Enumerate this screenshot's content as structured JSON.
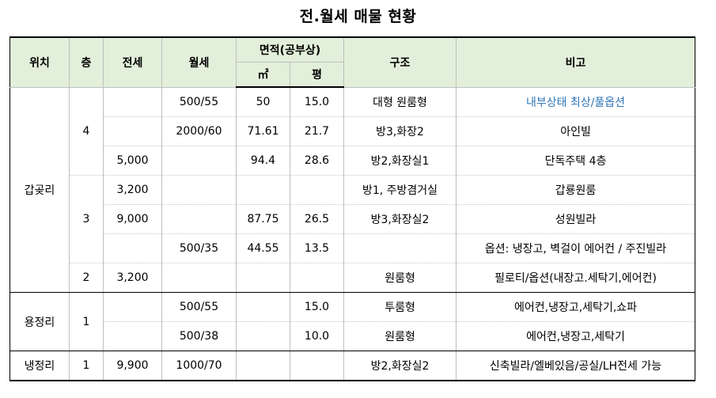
{
  "title": "전.월세 매물 현황",
  "headers": {
    "location": "위치",
    "floor": "층",
    "jeonse": "전세",
    "wolse": "월세",
    "area": "면적(공부상)",
    "area_m2": "㎡",
    "area_pyeong": "평",
    "structure": "구조",
    "note": "비고"
  },
  "groups": [
    {
      "location": "갑곶리",
      "floors": [
        "4",
        "3",
        "2"
      ]
    },
    {
      "location": "용정리",
      "floors": [
        "1"
      ]
    },
    {
      "location": "냉정리",
      "floors": [
        "1"
      ]
    }
  ],
  "rows": [
    {
      "jeonse": "",
      "wolse": "500/55",
      "m2": "50",
      "pyeong": "15.0",
      "structure": "대형 원룸형",
      "note": "내부상태 최상/풀옵션"
    },
    {
      "jeonse": "",
      "wolse": "2000/60",
      "m2": "71.61",
      "pyeong": "21.7",
      "structure": "방3,화장2",
      "note": "아인빌"
    },
    {
      "jeonse": "5,000",
      "wolse": "",
      "m2": "94.4",
      "pyeong": "28.6",
      "structure": "방2,화장실1",
      "note": "단독주택 4층"
    },
    {
      "jeonse": "3,200",
      "wolse": "",
      "m2": "",
      "pyeong": "",
      "structure": "방1, 주방겸거실",
      "note": "갑룡원룸"
    },
    {
      "jeonse": "9,000",
      "wolse": "",
      "m2": "87.75",
      "pyeong": "26.5",
      "structure": "방3,화장실2",
      "note": "성원빌라"
    },
    {
      "jeonse": "",
      "wolse": "500/35",
      "m2": "44.55",
      "pyeong": "13.5",
      "structure": "",
      "note": "옵션: 냉장고, 벽걸이 에어컨 / 주진빌라"
    },
    {
      "jeonse": "3,200",
      "wolse": "",
      "m2": "",
      "pyeong": "",
      "structure": "원룸형",
      "note": "필로티/옵션(내장고.세탁기,에어컨)"
    },
    {
      "jeonse": "",
      "wolse": "500/55",
      "m2": "",
      "pyeong": "15.0",
      "structure": "투룸형",
      "note": "에어컨,냉장고,세탁기,쇼파"
    },
    {
      "jeonse": "",
      "wolse": "500/38",
      "m2": "",
      "pyeong": "10.0",
      "structure": "원룸형",
      "note": "에어컨,냉장고,세탁기"
    },
    {
      "jeonse": "9,900",
      "wolse": "1000/70",
      "m2": "",
      "pyeong": "",
      "structure": "방2,화장실2",
      "note": "신축빌라/엘베있음/공실/LH전세 가능"
    }
  ],
  "colors": {
    "header_bg": "#e2efda",
    "note_highlight": "#2e75b6"
  }
}
